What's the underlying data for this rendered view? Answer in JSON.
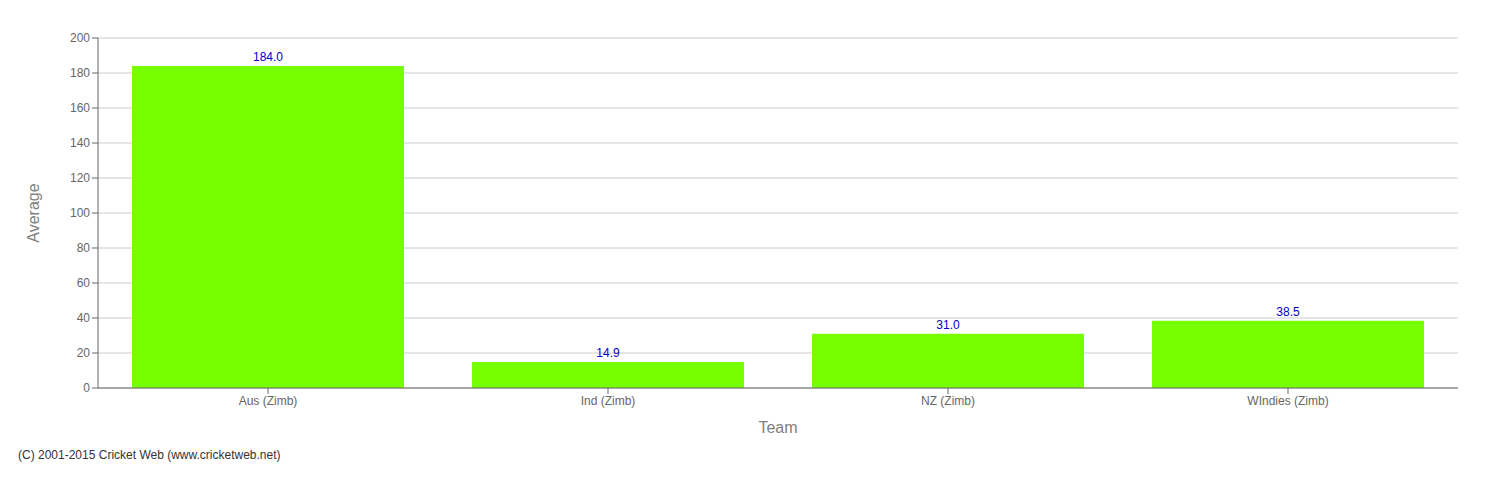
{
  "chart_data": {
    "type": "bar",
    "categories": [
      "Aus (Zimb)",
      "Ind (Zimb)",
      "NZ (Zimb)",
      "WIndies (Zimb)"
    ],
    "values": [
      184.0,
      14.9,
      31.0,
      38.5
    ],
    "value_labels": [
      "184.0",
      "14.9",
      "31.0",
      "38.5"
    ],
    "data_labels": true,
    "color": "#77ff00",
    "xlabel": "Team",
    "ylabel": "Average",
    "ylim": [
      0,
      200
    ],
    "yticks": [
      0,
      20,
      40,
      60,
      80,
      100,
      120,
      140,
      160,
      180,
      200
    ],
    "grid": true,
    "annotations": [
      "(C) 2001-2015 Cricket Web (www.cricketweb.net)"
    ]
  }
}
